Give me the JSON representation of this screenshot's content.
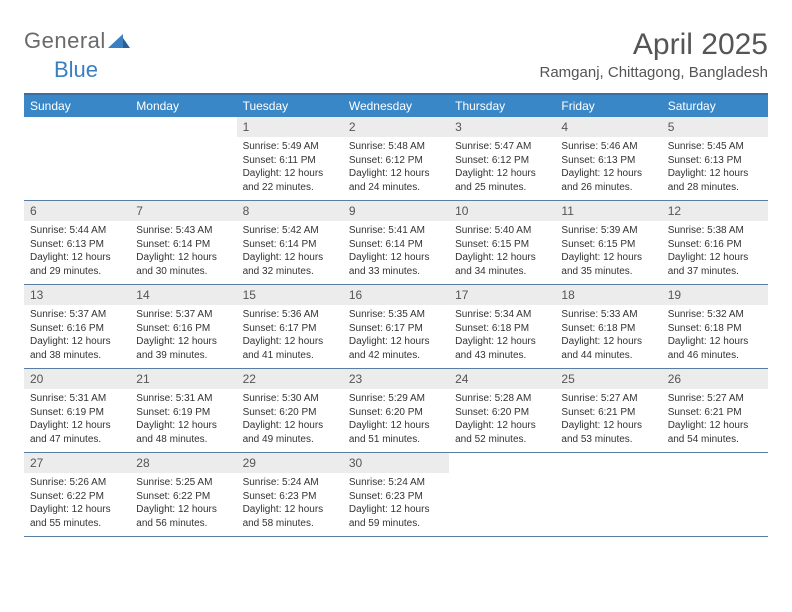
{
  "brand": {
    "part1": "General",
    "part2": "Blue"
  },
  "title": "April 2025",
  "location": "Ramganj, Chittagong, Bangladesh",
  "colors": {
    "header_bar": "#3a87c7",
    "rule": "#3a6fa3",
    "row_divider": "#5a7da3",
    "day_num_bg": "#ececec",
    "text": "#333333",
    "title_text": "#555555",
    "logo_gray": "#6a6a6a",
    "logo_blue": "#3a7fc2"
  },
  "weekdays": [
    "Sunday",
    "Monday",
    "Tuesday",
    "Wednesday",
    "Thursday",
    "Friday",
    "Saturday"
  ],
  "weeks": [
    [
      null,
      null,
      {
        "n": "1",
        "sr": "5:49 AM",
        "ss": "6:11 PM",
        "dl": "12 hours and 22 minutes."
      },
      {
        "n": "2",
        "sr": "5:48 AM",
        "ss": "6:12 PM",
        "dl": "12 hours and 24 minutes."
      },
      {
        "n": "3",
        "sr": "5:47 AM",
        "ss": "6:12 PM",
        "dl": "12 hours and 25 minutes."
      },
      {
        "n": "4",
        "sr": "5:46 AM",
        "ss": "6:13 PM",
        "dl": "12 hours and 26 minutes."
      },
      {
        "n": "5",
        "sr": "5:45 AM",
        "ss": "6:13 PM",
        "dl": "12 hours and 28 minutes."
      }
    ],
    [
      {
        "n": "6",
        "sr": "5:44 AM",
        "ss": "6:13 PM",
        "dl": "12 hours and 29 minutes."
      },
      {
        "n": "7",
        "sr": "5:43 AM",
        "ss": "6:14 PM",
        "dl": "12 hours and 30 minutes."
      },
      {
        "n": "8",
        "sr": "5:42 AM",
        "ss": "6:14 PM",
        "dl": "12 hours and 32 minutes."
      },
      {
        "n": "9",
        "sr": "5:41 AM",
        "ss": "6:14 PM",
        "dl": "12 hours and 33 minutes."
      },
      {
        "n": "10",
        "sr": "5:40 AM",
        "ss": "6:15 PM",
        "dl": "12 hours and 34 minutes."
      },
      {
        "n": "11",
        "sr": "5:39 AM",
        "ss": "6:15 PM",
        "dl": "12 hours and 35 minutes."
      },
      {
        "n": "12",
        "sr": "5:38 AM",
        "ss": "6:16 PM",
        "dl": "12 hours and 37 minutes."
      }
    ],
    [
      {
        "n": "13",
        "sr": "5:37 AM",
        "ss": "6:16 PM",
        "dl": "12 hours and 38 minutes."
      },
      {
        "n": "14",
        "sr": "5:37 AM",
        "ss": "6:16 PM",
        "dl": "12 hours and 39 minutes."
      },
      {
        "n": "15",
        "sr": "5:36 AM",
        "ss": "6:17 PM",
        "dl": "12 hours and 41 minutes."
      },
      {
        "n": "16",
        "sr": "5:35 AM",
        "ss": "6:17 PM",
        "dl": "12 hours and 42 minutes."
      },
      {
        "n": "17",
        "sr": "5:34 AM",
        "ss": "6:18 PM",
        "dl": "12 hours and 43 minutes."
      },
      {
        "n": "18",
        "sr": "5:33 AM",
        "ss": "6:18 PM",
        "dl": "12 hours and 44 minutes."
      },
      {
        "n": "19",
        "sr": "5:32 AM",
        "ss": "6:18 PM",
        "dl": "12 hours and 46 minutes."
      }
    ],
    [
      {
        "n": "20",
        "sr": "5:31 AM",
        "ss": "6:19 PM",
        "dl": "12 hours and 47 minutes."
      },
      {
        "n": "21",
        "sr": "5:31 AM",
        "ss": "6:19 PM",
        "dl": "12 hours and 48 minutes."
      },
      {
        "n": "22",
        "sr": "5:30 AM",
        "ss": "6:20 PM",
        "dl": "12 hours and 49 minutes."
      },
      {
        "n": "23",
        "sr": "5:29 AM",
        "ss": "6:20 PM",
        "dl": "12 hours and 51 minutes."
      },
      {
        "n": "24",
        "sr": "5:28 AM",
        "ss": "6:20 PM",
        "dl": "12 hours and 52 minutes."
      },
      {
        "n": "25",
        "sr": "5:27 AM",
        "ss": "6:21 PM",
        "dl": "12 hours and 53 minutes."
      },
      {
        "n": "26",
        "sr": "5:27 AM",
        "ss": "6:21 PM",
        "dl": "12 hours and 54 minutes."
      }
    ],
    [
      {
        "n": "27",
        "sr": "5:26 AM",
        "ss": "6:22 PM",
        "dl": "12 hours and 55 minutes."
      },
      {
        "n": "28",
        "sr": "5:25 AM",
        "ss": "6:22 PM",
        "dl": "12 hours and 56 minutes."
      },
      {
        "n": "29",
        "sr": "5:24 AM",
        "ss": "6:23 PM",
        "dl": "12 hours and 58 minutes."
      },
      {
        "n": "30",
        "sr": "5:24 AM",
        "ss": "6:23 PM",
        "dl": "12 hours and 59 minutes."
      },
      null,
      null,
      null
    ]
  ],
  "labels": {
    "sunrise": "Sunrise: ",
    "sunset": "Sunset: ",
    "daylight": "Daylight: "
  }
}
